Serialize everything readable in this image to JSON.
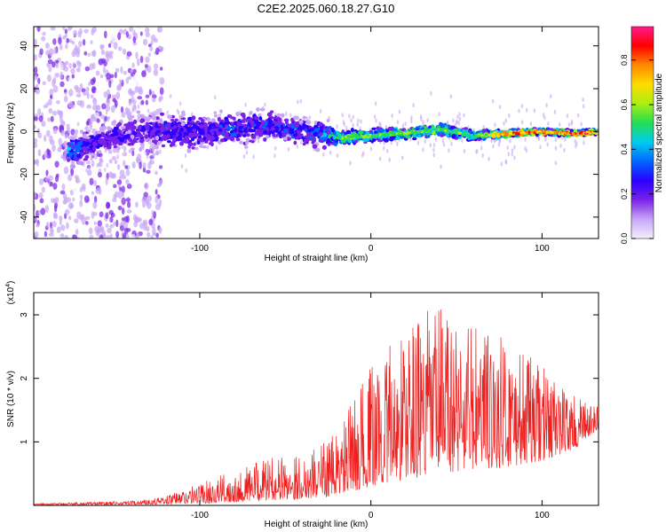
{
  "title": "C2E2.2025.060.18.27.G10",
  "colors": {
    "snr_line": "#ee2020",
    "colormap": [
      "#f4eeff",
      "#c8a6f5",
      "#7a22e8",
      "#2a00ff",
      "#0066ff",
      "#00ccee",
      "#22dd55",
      "#aaee11",
      "#ffdd00",
      "#ff8800",
      "#ff0000",
      "#ff1a8c"
    ]
  },
  "chart_data": [
    {
      "type": "heatmap",
      "title": "C2E2.2025.060.18.27.G10",
      "xlabel": "Height of straight line (km)",
      "ylabel": "Frequency (Hz)",
      "xlim": [
        -197,
        133
      ],
      "ylim": [
        -50,
        49
      ],
      "x_ticks": [
        -100,
        0,
        100
      ],
      "y_ticks": [
        -40,
        -20,
        0,
        20,
        40
      ],
      "grid": false,
      "colorbar": {
        "label": "Normalized spectral amplitude",
        "range": [
          0,
          0.95
        ],
        "ticks": [
          "0.0",
          "0.2",
          "0.4",
          "0.6",
          "0.8"
        ],
        "tick_values": [
          0.0,
          0.2,
          0.4,
          0.6,
          0.8
        ]
      },
      "ridge": {
        "x": [
          -175,
          -160,
          -140,
          -120,
          -100,
          -80,
          -60,
          -40,
          -25,
          -20,
          0,
          20,
          40,
          60,
          80,
          100,
          120,
          133
        ],
        "center_hz": [
          -9,
          -5,
          -1,
          1,
          0,
          1,
          3,
          0,
          -2,
          -3,
          -2,
          -1,
          1,
          -2,
          -1,
          0,
          -1,
          0
        ],
        "half_width_hz": [
          8,
          9,
          11,
          12,
          12,
          11,
          10,
          9,
          8,
          5,
          4,
          4,
          4,
          3,
          2.5,
          2,
          2,
          2
        ],
        "peak_amplitude": [
          0.4,
          0.3,
          0.25,
          0.3,
          0.28,
          0.32,
          0.3,
          0.35,
          0.45,
          0.55,
          0.6,
          0.62,
          0.6,
          0.55,
          0.85,
          0.85,
          0.85,
          0.9
        ]
      }
    },
    {
      "type": "line",
      "xlabel": "Height of straight line (km)",
      "ylabel": "SNR (10 * v/v)",
      "y_multiplier": "(x10^4)",
      "xlim": [
        -197,
        133
      ],
      "ylim": [
        0,
        3.35
      ],
      "x_ticks": [
        -100,
        0,
        100
      ],
      "y_ticks": [
        1,
        2,
        3
      ],
      "grid": false,
      "envelope": {
        "x": [
          -197,
          -180,
          -160,
          -140,
          -120,
          -100,
          -80,
          -60,
          -40,
          -20,
          0,
          20,
          40,
          60,
          80,
          100,
          120,
          133
        ],
        "peak": [
          0.03,
          0.04,
          0.06,
          0.07,
          0.15,
          0.35,
          0.55,
          0.75,
          0.8,
          1.15,
          2.2,
          2.85,
          3.2,
          2.9,
          2.6,
          2.2,
          1.7,
          1.55
        ],
        "floor": [
          0.01,
          0.01,
          0.01,
          0.01,
          0.02,
          0.03,
          0.05,
          0.08,
          0.1,
          0.15,
          0.3,
          0.4,
          0.5,
          0.55,
          0.6,
          0.7,
          0.9,
          1.2
        ]
      }
    }
  ]
}
